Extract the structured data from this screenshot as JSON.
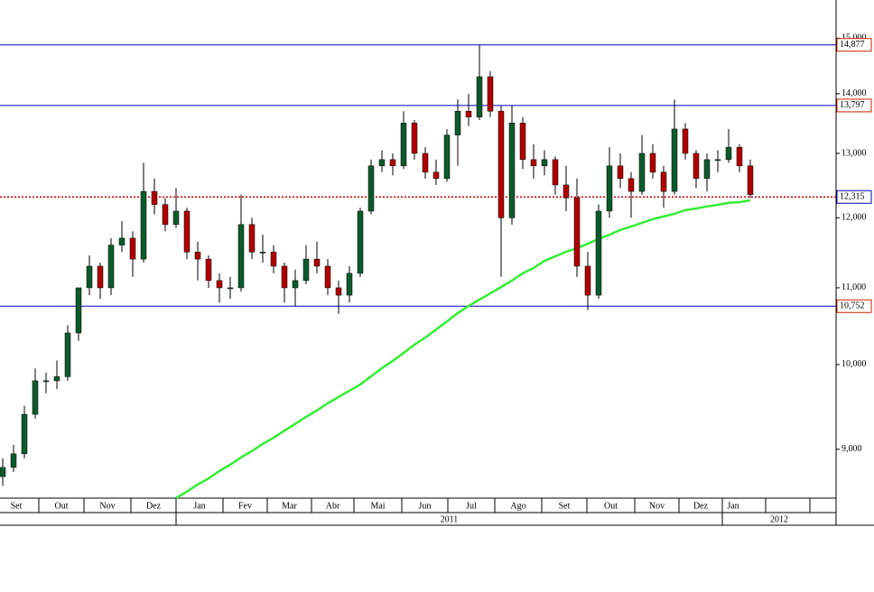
{
  "chart_data": {
    "type": "candlestick",
    "log_scale": true,
    "ylim": [
      8470,
      15730
    ],
    "yticks": [
      {
        "value": 9000,
        "label": "9,000"
      },
      {
        "value": 10000,
        "label": "10,000"
      },
      {
        "value": 11000,
        "label": "11,000"
      },
      {
        "value": 12000,
        "label": "12,000"
      },
      {
        "value": 13000,
        "label": "13,000"
      },
      {
        "value": 14000,
        "label": "14,000"
      },
      {
        "value": 15000,
        "label": "15,000"
      }
    ],
    "months": [
      "Set",
      "Out",
      "Nov",
      "Dez",
      "Jan",
      "Fev",
      "Mar",
      "Abr",
      "Mai",
      "Jun",
      "Jul",
      "Ago",
      "Set",
      "Out",
      "Nov",
      "Dez",
      "Jan"
    ],
    "years": [
      "2011",
      "2012"
    ],
    "up_color": "#0d5a2c",
    "down_color": "#b00000",
    "ohlc": [
      [
        8700,
        8900,
        8600,
        8800
      ],
      [
        8800,
        9050,
        8750,
        8950
      ],
      [
        8950,
        9500,
        8900,
        9400
      ],
      [
        9400,
        9950,
        9350,
        9800
      ],
      [
        9800,
        9900,
        9650,
        9800
      ],
      [
        9800,
        10050,
        9700,
        9850
      ],
      [
        9850,
        10500,
        9800,
        10400
      ],
      [
        10400,
        11000,
        10300,
        11000
      ],
      [
        11000,
        11450,
        10900,
        11300
      ],
      [
        11300,
        11350,
        10850,
        11000
      ],
      [
        11000,
        11700,
        10900,
        11600
      ],
      [
        11600,
        11950,
        11500,
        11700
      ],
      [
        11700,
        11800,
        11150,
        11400
      ],
      [
        11400,
        12850,
        11350,
        12400
      ],
      [
        12400,
        12600,
        12050,
        12200
      ],
      [
        12200,
        12300,
        11800,
        11900
      ],
      [
        11900,
        12450,
        11850,
        12100
      ],
      [
        12100,
        12150,
        11400,
        11500
      ],
      [
        11500,
        11650,
        11100,
        11400
      ],
      [
        11400,
        11450,
        11000,
        11100
      ],
      [
        11100,
        11200,
        10800,
        11000
      ],
      [
        11000,
        11150,
        10850,
        11000
      ],
      [
        11000,
        12350,
        10950,
        11900
      ],
      [
        11900,
        12000,
        11400,
        11500
      ],
      [
        11500,
        11750,
        11350,
        11500
      ],
      [
        11500,
        11600,
        11200,
        11300
      ],
      [
        11300,
        11350,
        10800,
        11000
      ],
      [
        11000,
        11250,
        10750,
        11100
      ],
      [
        11100,
        11600,
        11050,
        11400
      ],
      [
        11400,
        11650,
        11200,
        11300
      ],
      [
        11300,
        11400,
        10900,
        11000
      ],
      [
        11000,
        11100,
        10650,
        10900
      ],
      [
        10900,
        11300,
        10800,
        11200
      ],
      [
        11200,
        12150,
        11150,
        12100
      ],
      [
        12100,
        12900,
        12050,
        12800
      ],
      [
        12800,
        13050,
        12700,
        12900
      ],
      [
        12900,
        13000,
        12650,
        12800
      ],
      [
        12800,
        13700,
        12750,
        13500
      ],
      [
        13500,
        13550,
        12900,
        13000
      ],
      [
        13000,
        13100,
        12600,
        12700
      ],
      [
        12700,
        12900,
        12500,
        12600
      ],
      [
        12600,
        13400,
        12550,
        13300
      ],
      [
        13300,
        13900,
        12800,
        13700
      ],
      [
        13700,
        14000,
        13450,
        13600
      ],
      [
        13600,
        14877,
        13550,
        14300
      ],
      [
        14300,
        14400,
        13600,
        13700
      ],
      [
        13700,
        13800,
        11150,
        12000
      ],
      [
        12000,
        13800,
        11900,
        13500
      ],
      [
        13500,
        13600,
        12750,
        12900
      ],
      [
        12900,
        13150,
        12600,
        12800
      ],
      [
        12800,
        13050,
        12650,
        12900
      ],
      [
        12900,
        12950,
        12350,
        12500
      ],
      [
        12500,
        12800,
        12100,
        12300
      ],
      [
        12300,
        12600,
        11150,
        11300
      ],
      [
        11300,
        11500,
        10700,
        10900
      ],
      [
        10900,
        12200,
        10850,
        12100
      ],
      [
        12100,
        13100,
        12000,
        12800
      ],
      [
        12800,
        13000,
        12450,
        12600
      ],
      [
        12600,
        12700,
        12000,
        12400
      ],
      [
        12400,
        13300,
        12350,
        13000
      ],
      [
        13000,
        13150,
        12600,
        12700
      ],
      [
        12700,
        12800,
        12150,
        12400
      ],
      [
        12400,
        13900,
        12350,
        13400
      ],
      [
        13400,
        13500,
        12900,
        13000
      ],
      [
        13000,
        13050,
        12450,
        12600
      ],
      [
        12600,
        13000,
        12400,
        12900
      ],
      [
        12900,
        13050,
        12700,
        12900
      ],
      [
        12900,
        13400,
        12850,
        13100
      ],
      [
        13100,
        13150,
        12700,
        12800
      ],
      [
        12800,
        12900,
        12300,
        12350
      ]
    ],
    "moving_average": {
      "color": "#33ee33",
      "values": [
        null,
        null,
        null,
        null,
        null,
        null,
        null,
        null,
        null,
        null,
        null,
        null,
        null,
        null,
        null,
        null,
        8470,
        8540,
        8615,
        8680,
        8760,
        8830,
        8910,
        8980,
        9060,
        9130,
        9210,
        9290,
        9370,
        9445,
        9530,
        9605,
        9680,
        9755,
        9855,
        9955,
        10045,
        10145,
        10250,
        10340,
        10445,
        10550,
        10660,
        10755,
        10840,
        10925,
        11010,
        11100,
        11200,
        11275,
        11375,
        11440,
        11505,
        11555,
        11620,
        11690,
        11750,
        11820,
        11870,
        11925,
        11980,
        12020,
        12060,
        12115,
        12140,
        12170,
        12195,
        12225,
        12235,
        12265
      ]
    },
    "levels": [
      {
        "value": 14877,
        "label": "14,877",
        "color": "#0000cc",
        "label_color": "#cc2200",
        "dashed": false
      },
      {
        "value": 13797,
        "label": "13,797",
        "color": "#0000cc",
        "label_color": "#cc2200",
        "dashed": false
      },
      {
        "value": 12315,
        "label": "12,315",
        "color": "#cc0000",
        "label_color": "#0000aa",
        "dashed": true
      },
      {
        "value": 10752,
        "label": "10,752",
        "color": "#0000cc",
        "label_color": "#cc2200",
        "dashed": false
      }
    ]
  }
}
